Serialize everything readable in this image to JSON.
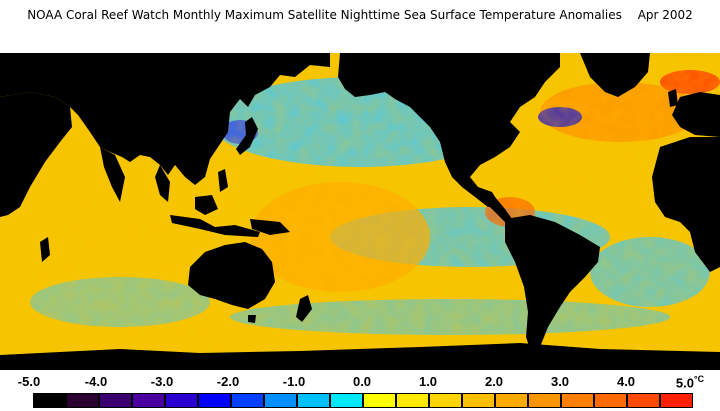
{
  "title": {
    "text": "NOAA Coral Reef Watch Monthly Maximum Satellite Nighttime Sea Surface Temperature Anomalies",
    "date": "Apr 2002"
  },
  "map": {
    "projection": "global equirectangular, Pacific-centered",
    "land_color": "#000000",
    "ice_color": "#ffffff",
    "ocean_base_color": "#f5c400"
  },
  "scale": {
    "labels": [
      "-5.0",
      "-4.0",
      "-3.0",
      "-2.0",
      "-1.0",
      "0.0",
      "1.0",
      "2.0",
      "3.0",
      "4.0",
      "5.0"
    ],
    "unit": "°C",
    "colors": [
      "#000000",
      "#2a0030",
      "#3b0070",
      "#4a00a0",
      "#2a00d0",
      "#0000ff",
      "#0040ff",
      "#0090ff",
      "#00c0ff",
      "#00e8ff",
      "#ffff00",
      "#ffea00",
      "#ffd400",
      "#ffbf00",
      "#ffaa00",
      "#ff9500",
      "#ff7f00",
      "#ff6a00",
      "#ff4a00",
      "#ff2000"
    ]
  }
}
